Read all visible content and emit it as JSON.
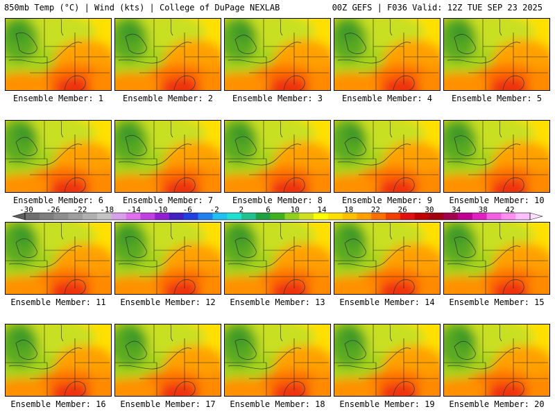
{
  "header": {
    "left": "850mb Temp (°C) | Wind (kts) | College of DuPage NEXLAB",
    "right": "00Z GEFS | F036 Valid: 12Z TUE SEP 23 2025"
  },
  "caption_prefix": "Ensemble Member:",
  "members": [
    "1",
    "2",
    "3",
    "4",
    "5",
    "6",
    "7",
    "8",
    "9",
    "10",
    "11",
    "12",
    "13",
    "14",
    "15",
    "16",
    "17",
    "18",
    "19",
    "20"
  ],
  "colorbar": {
    "labels": [
      "-30",
      "-26",
      "-22",
      "-18",
      "-14",
      "-10",
      "-6",
      "-2",
      "2",
      "6",
      "10",
      "14",
      "18",
      "22",
      "26",
      "30",
      "34",
      "38",
      "42"
    ],
    "colors": [
      "#6e6e6e",
      "#7e7e7e",
      "#8e8e8e",
      "#9e9e9e",
      "#b0b0b0",
      "#c4c4c4",
      "#d8a0e8",
      "#e070f0",
      "#c040e0",
      "#9020d0",
      "#4020c0",
      "#2040e0",
      "#2080f0",
      "#20c0f0",
      "#20e0d0",
      "#20c090",
      "#20a040",
      "#40b020",
      "#90d020",
      "#d0e020",
      "#ffff00",
      "#ffe000",
      "#ffc000",
      "#ffa000",
      "#ff7000",
      "#f04000",
      "#e01010",
      "#c00000",
      "#a00010",
      "#a00050",
      "#c00090",
      "#e020c0",
      "#f060e0",
      "#ff90f0",
      "#ffc0ff"
    ]
  }
}
